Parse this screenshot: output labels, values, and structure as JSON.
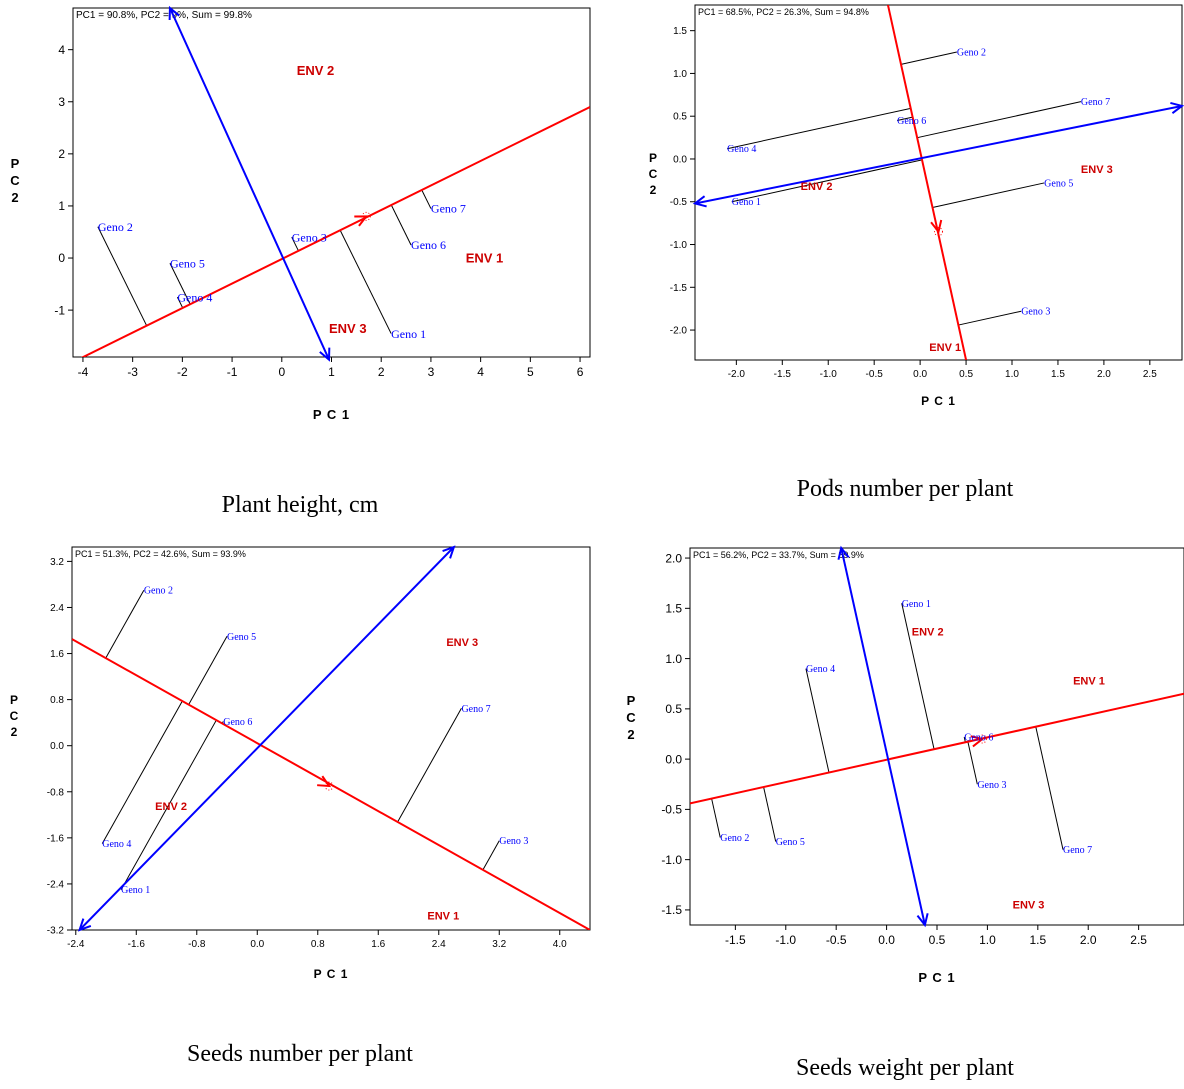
{
  "figure": {
    "colors": {
      "genotype": "#0000ff",
      "environment": "#cc0000",
      "axis_red": "#ff0000",
      "axis_blue": "#0000ff"
    },
    "captions": [
      "Plant height, cm",
      "Pods number per plant",
      "Seeds number per plant",
      "Seeds weight per plant"
    ]
  },
  "chart_data": [
    {
      "type": "scatter",
      "title": "PC1 = 90.8%, PC2 = 9%, Sum = 99.8%",
      "xlabel": "P C 1",
      "ylabel": "P C 2",
      "ylabel_layout": "vertical",
      "xlim": [
        -4.2,
        6.2
      ],
      "ylim": [
        -1.9,
        4.8
      ],
      "xticks": [
        -4,
        -3,
        -2,
        -1,
        0,
        1,
        2,
        3,
        4,
        5,
        6
      ],
      "xtick_labels": [
        "-4",
        "-3",
        "-2",
        "-1",
        "0",
        "1",
        "2",
        "3",
        "4",
        "5",
        "6"
      ],
      "yticks": [
        -1,
        0,
        1,
        2,
        3,
        4
      ],
      "ytick_labels": [
        "-1",
        "0",
        "1",
        "2",
        "3",
        "4"
      ],
      "axes": [
        {
          "color": "red",
          "from": [
            -4.1,
            -1.95
          ],
          "to": [
            6.2,
            2.9
          ],
          "arrow_at": [
            1.7,
            0.8
          ]
        },
        {
          "color": "blue",
          "from": [
            0.95,
            -1.95
          ],
          "to": [
            -2.25,
            4.8
          ],
          "head_start": true,
          "head_end": true
        }
      ],
      "environments": [
        {
          "label": "ENV 1",
          "x": 3.7,
          "y": 0.0
        },
        {
          "label": "ENV 2",
          "x": 0.3,
          "y": 3.6
        },
        {
          "label": "ENV 3",
          "x": 0.95,
          "y": -1.35
        }
      ],
      "genotypes": [
        {
          "label": "Geno 1",
          "x": 2.2,
          "y": -1.45
        },
        {
          "label": "Geno 2",
          "x": -3.7,
          "y": 0.6
        },
        {
          "label": "Geno 3",
          "x": 0.2,
          "y": 0.4
        },
        {
          "label": "Geno 4",
          "x": -2.1,
          "y": -0.75
        },
        {
          "label": "Geno 5",
          "x": -2.25,
          "y": -0.1
        },
        {
          "label": "Geno 6",
          "x": 2.6,
          "y": 0.25
        },
        {
          "label": "Geno 7",
          "x": 3.0,
          "y": 0.95
        }
      ],
      "genotype_label_size": 12,
      "env_label_size": 13
    },
    {
      "type": "scatter",
      "title": "PC1 = 68.5%, PC2 = 26.3%, Sum = 94.8%",
      "xlabel": "P C 1",
      "ylabel": "P C 2",
      "ylabel_layout": "stacked",
      "xlim": [
        -2.45,
        2.85
      ],
      "ylim": [
        -2.35,
        1.8
      ],
      "xticks": [
        -2.0,
        -1.5,
        -1.0,
        -0.5,
        0.0,
        0.5,
        1.0,
        1.5,
        2.0,
        2.5
      ],
      "xtick_labels": [
        "-2.0",
        "-1.5",
        "-1.0",
        "-0.5",
        "0.0",
        "0.5",
        "1.0",
        "1.5",
        "2.0",
        "2.5"
      ],
      "yticks": [
        -2.0,
        -1.5,
        -1.0,
        -0.5,
        0.0,
        0.5,
        1.0,
        1.5
      ],
      "ytick_labels": [
        "-2.0",
        "-1.5",
        "-1.0",
        "-0.5",
        "0.0",
        "0.5",
        "1.0",
        "1.5"
      ],
      "axes": [
        {
          "color": "red",
          "from": [
            -0.35,
            1.8
          ],
          "to": [
            0.5,
            -2.35
          ],
          "arrow_at": [
            0.2,
            -0.85
          ]
        },
        {
          "color": "blue",
          "from": [
            -2.45,
            -0.52
          ],
          "to": [
            2.85,
            0.62
          ],
          "head_start": true,
          "head_end": true
        }
      ],
      "environments": [
        {
          "label": "ENV 1",
          "x": 0.1,
          "y": -2.2
        },
        {
          "label": "ENV 2",
          "x": -1.3,
          "y": -0.32
        },
        {
          "label": "ENV 3",
          "x": 1.75,
          "y": -0.12
        }
      ],
      "genotypes": [
        {
          "label": "Geno 1",
          "x": -2.05,
          "y": -0.5
        },
        {
          "label": "Geno 2",
          "x": 0.4,
          "y": 1.25
        },
        {
          "label": "Geno 3",
          "x": 1.1,
          "y": -1.78
        },
        {
          "label": "Geno 4",
          "x": -2.1,
          "y": 0.12
        },
        {
          "label": "Geno 5",
          "x": 1.35,
          "y": -0.28
        },
        {
          "label": "Geno 6",
          "x": -0.25,
          "y": 0.45
        },
        {
          "label": "Geno 7",
          "x": 1.75,
          "y": 0.67
        }
      ],
      "genotype_label_size": 10,
      "env_label_size": 11
    },
    {
      "type": "scatter",
      "title": "PC1 = 51.3%, PC2 = 42.6%, Sum = 93.9%",
      "xlabel": "P C 1",
      "ylabel": "P C 2",
      "ylabel_layout": "stacked",
      "xlim": [
        -2.45,
        4.4
      ],
      "ylim": [
        -3.2,
        3.45
      ],
      "xticks": [
        -2.4,
        -1.6,
        -0.8,
        0.0,
        0.8,
        1.6,
        2.4,
        3.2,
        4.0
      ],
      "xtick_labels": [
        "-2.4",
        "-1.6",
        "-0.8",
        "0.0",
        "0.8",
        "1.6",
        "2.4",
        "3.2",
        "4.0"
      ],
      "yticks": [
        -3.2,
        -2.4,
        -1.6,
        -0.8,
        0.0,
        0.8,
        1.6,
        2.4,
        3.2
      ],
      "ytick_labels": [
        "-3.2",
        "-2.4",
        "-1.6",
        "-0.8",
        "0.0",
        "0.8",
        "1.6",
        "2.4",
        "3.2"
      ],
      "axes": [
        {
          "color": "red",
          "from": [
            -2.45,
            1.85
          ],
          "to": [
            4.4,
            -3.2
          ],
          "arrow_at": [
            0.95,
            -0.7
          ]
        },
        {
          "color": "blue",
          "from": [
            -2.35,
            -3.2
          ],
          "to": [
            2.6,
            3.45
          ],
          "head_start": true,
          "head_end": true
        }
      ],
      "environments": [
        {
          "label": "ENV 1",
          "x": 2.25,
          "y": -2.95
        },
        {
          "label": "ENV 2",
          "x": -1.35,
          "y": -1.05
        },
        {
          "label": "ENV 3",
          "x": 2.5,
          "y": 1.8
        }
      ],
      "genotypes": [
        {
          "label": "Geno 1",
          "x": -1.8,
          "y": -2.5
        },
        {
          "label": "Geno 2",
          "x": -1.5,
          "y": 2.7
        },
        {
          "label": "Geno 3",
          "x": 3.2,
          "y": -1.65
        },
        {
          "label": "Geno 4",
          "x": -2.05,
          "y": -1.7
        },
        {
          "label": "Geno 5",
          "x": -0.4,
          "y": 1.9
        },
        {
          "label": "Geno 6",
          "x": -0.45,
          "y": 0.42
        },
        {
          "label": "Geno 7",
          "x": 2.7,
          "y": 0.65
        }
      ],
      "genotype_label_size": 10,
      "env_label_size": 11
    },
    {
      "type": "scatter",
      "title": "PC1 = 56.2%, PC2 = 33.7%, Sum = 89.9%",
      "xlabel": "P C 1",
      "ylabel": "P C 2",
      "ylabel_layout": "stacked",
      "xlim": [
        -1.95,
        2.95
      ],
      "ylim": [
        -1.65,
        2.1
      ],
      "xticks": [
        -1.5,
        -1.0,
        -0.5,
        0.0,
        0.5,
        1.0,
        1.5,
        2.0,
        2.5
      ],
      "xtick_labels": [
        "-1.5",
        "-1.0",
        "-0.5",
        "0.0",
        "0.5",
        "1.0",
        "1.5",
        "2.0",
        "2.5"
      ],
      "yticks": [
        -1.5,
        -1.0,
        -0.5,
        0.0,
        0.5,
        1.0,
        1.5,
        2.0
      ],
      "ytick_labels": [
        "-1.5",
        "-1.0",
        "-0.5",
        "0.0",
        "0.5",
        "1.0",
        "1.5",
        "2.0"
      ],
      "axes": [
        {
          "color": "red",
          "from": [
            -1.95,
            -0.44
          ],
          "to": [
            2.95,
            0.65
          ],
          "arrow_at": [
            0.95,
            0.2
          ]
        },
        {
          "color": "blue",
          "from": [
            0.38,
            -1.65
          ],
          "to": [
            -0.45,
            2.1
          ],
          "head_start": true,
          "head_end": true
        }
      ],
      "environments": [
        {
          "label": "ENV 1",
          "x": 1.85,
          "y": 0.78
        },
        {
          "label": "ENV 2",
          "x": 0.25,
          "y": 1.27
        },
        {
          "label": "ENV 3",
          "x": 1.25,
          "y": -1.45
        }
      ],
      "genotypes": [
        {
          "label": "Geno 1",
          "x": 0.15,
          "y": 1.55
        },
        {
          "label": "Geno 2",
          "x": -1.65,
          "y": -0.78
        },
        {
          "label": "Geno 3",
          "x": 0.9,
          "y": -0.25
        },
        {
          "label": "Geno 4",
          "x": -0.8,
          "y": 0.9
        },
        {
          "label": "Geno 5",
          "x": -1.1,
          "y": -0.82
        },
        {
          "label": "Geno 6",
          "x": 0.77,
          "y": 0.22
        },
        {
          "label": "Geno 7",
          "x": 1.75,
          "y": -0.9
        }
      ],
      "genotype_label_size": 10,
      "env_label_size": 11
    }
  ]
}
